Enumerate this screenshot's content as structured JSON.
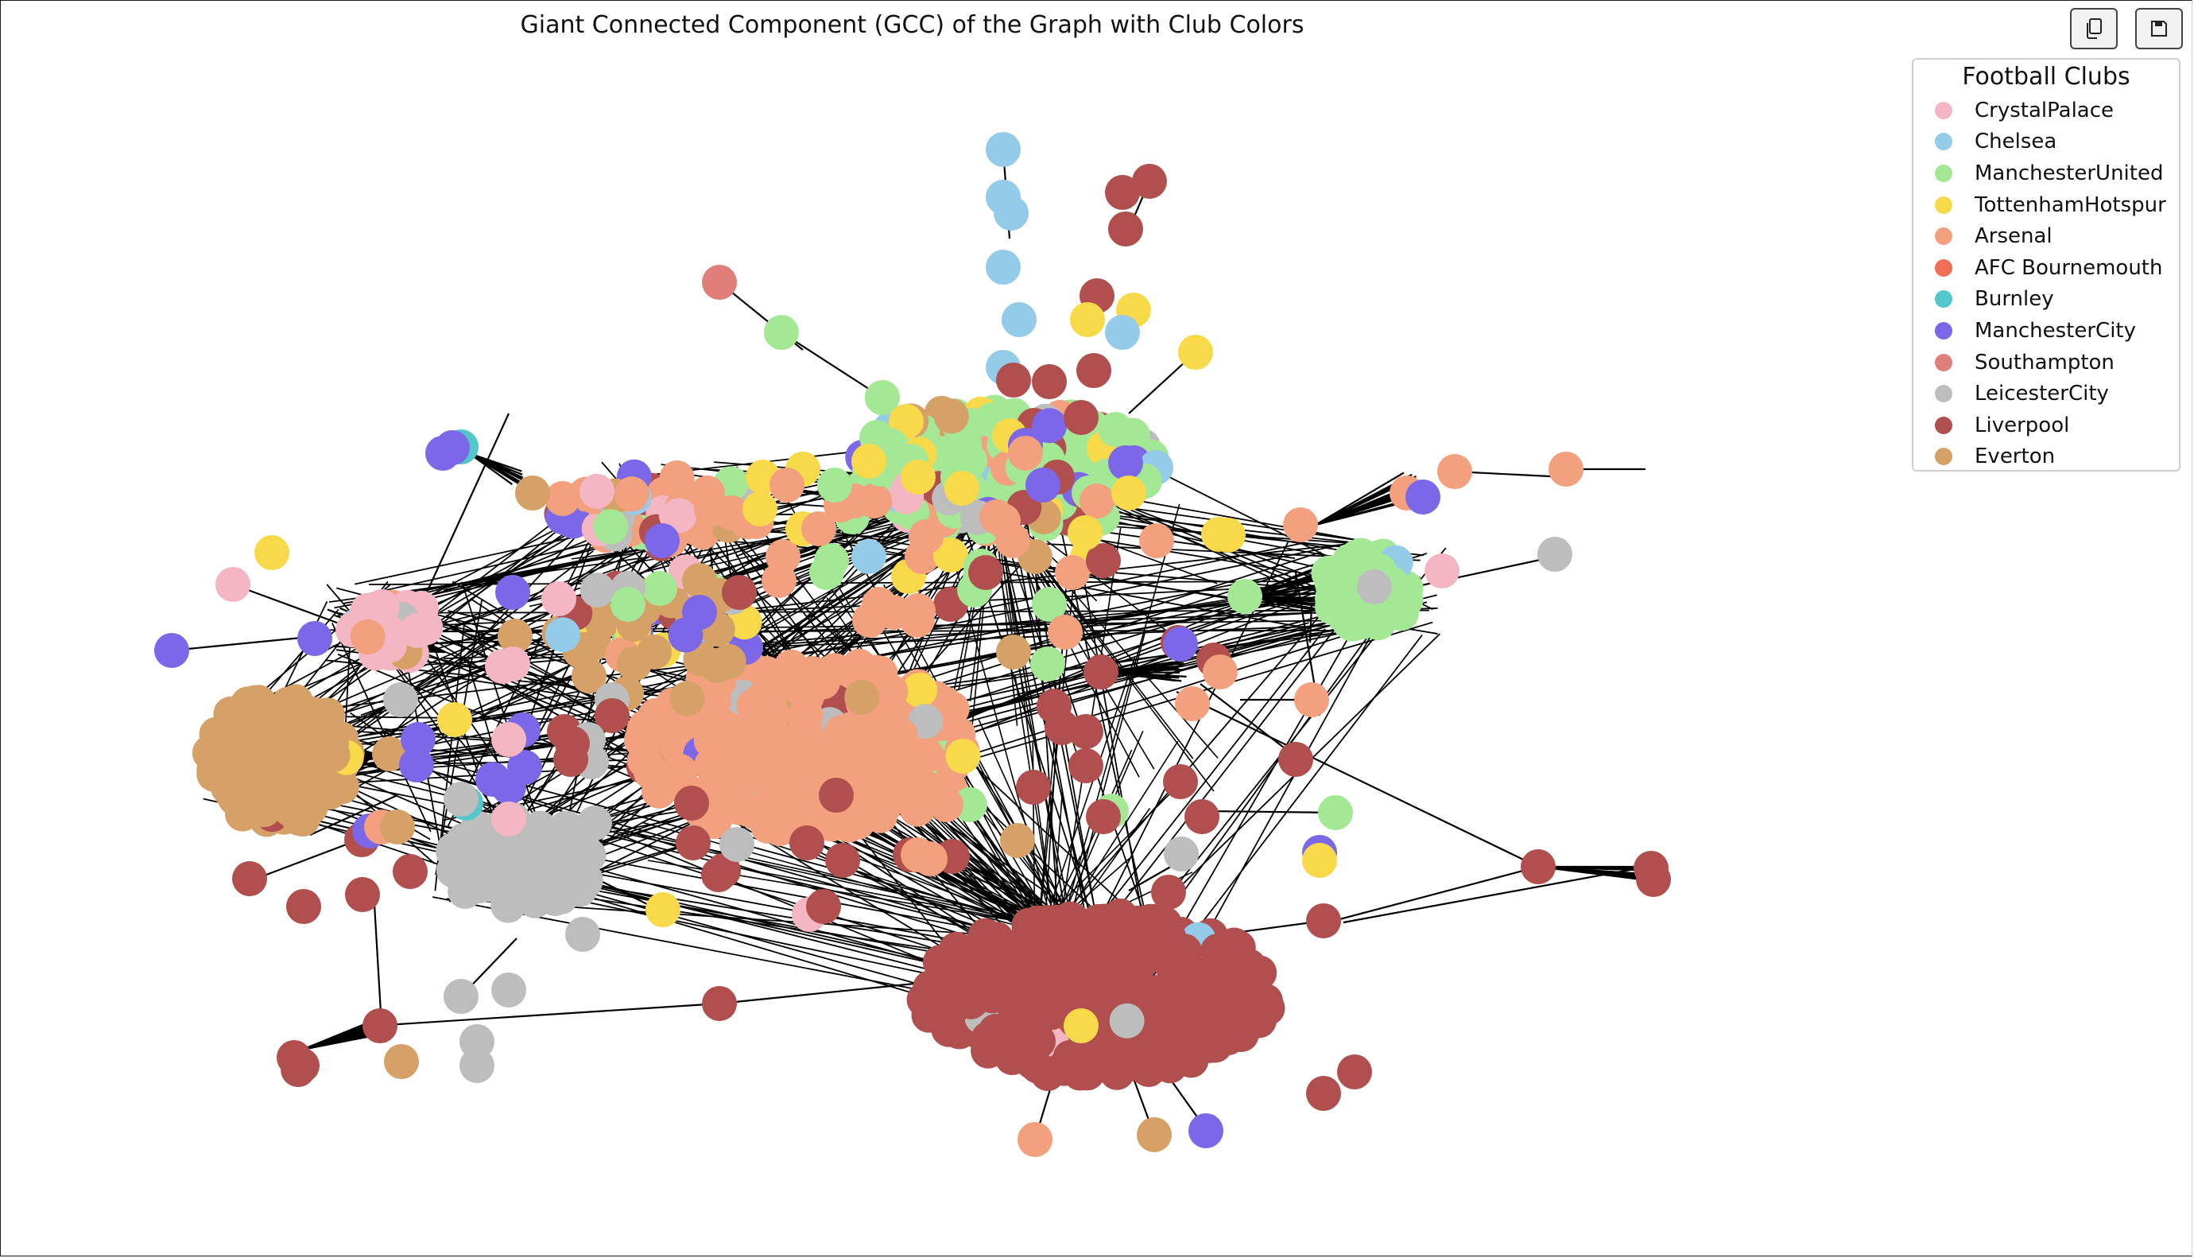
{
  "chart_data": {
    "type": "network",
    "title": "Giant Connected Component (GCC) of the Graph with Club Colors",
    "legend": {
      "title": "Football Clubs",
      "placement": "top-right",
      "entries": [
        {
          "name": "CrystalPalace",
          "color": "#f4b6c2"
        },
        {
          "name": "Chelsea",
          "color": "#93cbe8"
        },
        {
          "name": "ManchesterUnited",
          "color": "#a4e896"
        },
        {
          "name": "TottenhamHotspur",
          "color": "#f8d94a"
        },
        {
          "name": "Arsenal",
          "color": "#f2a07e"
        },
        {
          "name": "AFC Bournemouth",
          "color": "#f06f55"
        },
        {
          "name": "Burnley",
          "color": "#52c8ca"
        },
        {
          "name": "ManchesterCity",
          "color": "#7b67e8"
        },
        {
          "name": "Southampton",
          "color": "#e07e7a"
        },
        {
          "name": "LeicesterCity",
          "color": "#bdbdbd"
        },
        {
          "name": "Liverpool",
          "color": "#b04f4e"
        },
        {
          "name": "Everton",
          "color": "#d5a166"
        }
      ]
    },
    "axes": "none",
    "grid": false,
    "edge_color": "#000000",
    "clusters": [
      {
        "club": "Liverpool",
        "size": "largest"
      },
      {
        "club": "Arsenal",
        "size": "large"
      },
      {
        "club": "ManchesterUnited",
        "size": "large"
      },
      {
        "club": "Everton",
        "size": "medium"
      },
      {
        "club": "LeicesterCity",
        "size": "medium"
      },
      {
        "club": "CrystalPalace",
        "size": "small"
      }
    ]
  },
  "toolbar": {
    "copy_icon": "copy-icon",
    "save_icon": "save-icon"
  }
}
